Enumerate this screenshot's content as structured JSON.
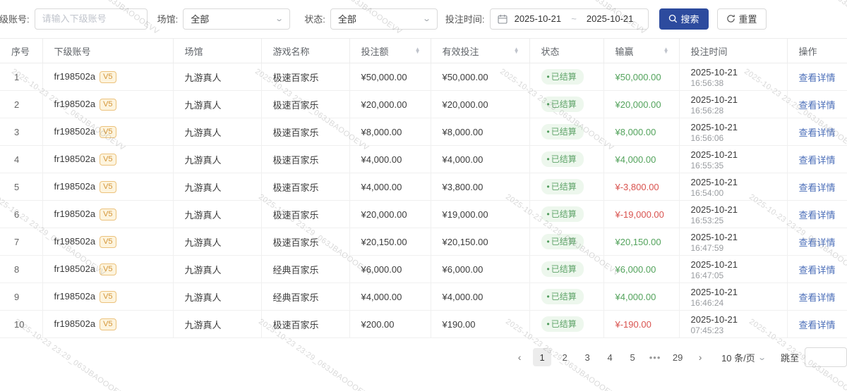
{
  "watermark": {
    "text": "2025-10-23 23:29_063JBAOOOEVV"
  },
  "filters": {
    "account_label": "下级账号:",
    "account_placeholder": "请输入下级账号",
    "venue_label": "场馆:",
    "venue_value": "全部",
    "status_label": "状态:",
    "status_value": "全部",
    "time_label": "投注时间:",
    "date_start": "2025-10-21",
    "date_separator": "~",
    "date_end": "2025-10-21",
    "search_label": "搜索",
    "reset_label": "重置"
  },
  "table": {
    "columns": [
      {
        "label": "序号",
        "sortable": false
      },
      {
        "label": "下级账号",
        "sortable": false
      },
      {
        "label": "场馆",
        "sortable": false
      },
      {
        "label": "游戏名称",
        "sortable": false
      },
      {
        "label": "投注额",
        "sortable": true
      },
      {
        "label": "有效投注",
        "sortable": true
      },
      {
        "label": "状态",
        "sortable": false
      },
      {
        "label": "输赢",
        "sortable": true
      },
      {
        "label": "投注时间",
        "sortable": false
      },
      {
        "label": "操作",
        "sortable": false
      }
    ],
    "action_label": "查看详情",
    "status_dot": "•",
    "rows": [
      {
        "index": "1",
        "account": "fr198502a",
        "badge": "V5",
        "venue": "九游真人",
        "game": "极速百家乐",
        "bet": "¥50,000.00",
        "valid": "¥50,000.00",
        "status": "已结算",
        "winloss": "¥50,000.00",
        "trend": "win",
        "date": "2025-10-21",
        "time": "16:56:38"
      },
      {
        "index": "2",
        "account": "fr198502a",
        "badge": "V5",
        "venue": "九游真人",
        "game": "极速百家乐",
        "bet": "¥20,000.00",
        "valid": "¥20,000.00",
        "status": "已结算",
        "winloss": "¥20,000.00",
        "trend": "win",
        "date": "2025-10-21",
        "time": "16:56:28"
      },
      {
        "index": "3",
        "account": "fr198502a",
        "badge": "V5",
        "venue": "九游真人",
        "game": "极速百家乐",
        "bet": "¥8,000.00",
        "valid": "¥8,000.00",
        "status": "已结算",
        "winloss": "¥8,000.00",
        "trend": "win",
        "date": "2025-10-21",
        "time": "16:56:06"
      },
      {
        "index": "4",
        "account": "fr198502a",
        "badge": "V5",
        "venue": "九游真人",
        "game": "极速百家乐",
        "bet": "¥4,000.00",
        "valid": "¥4,000.00",
        "status": "已结算",
        "winloss": "¥4,000.00",
        "trend": "win",
        "date": "2025-10-21",
        "time": "16:55:35"
      },
      {
        "index": "5",
        "account": "fr198502a",
        "badge": "V5",
        "venue": "九游真人",
        "game": "极速百家乐",
        "bet": "¥4,000.00",
        "valid": "¥3,800.00",
        "status": "已结算",
        "winloss": "¥-3,800.00",
        "trend": "loss",
        "date": "2025-10-21",
        "time": "16:54:00"
      },
      {
        "index": "6",
        "account": "fr198502a",
        "badge": "V5",
        "venue": "九游真人",
        "game": "极速百家乐",
        "bet": "¥20,000.00",
        "valid": "¥19,000.00",
        "status": "已结算",
        "winloss": "¥-19,000.00",
        "trend": "loss",
        "date": "2025-10-21",
        "time": "16:53:25"
      },
      {
        "index": "7",
        "account": "fr198502a",
        "badge": "V5",
        "venue": "九游真人",
        "game": "极速百家乐",
        "bet": "¥20,150.00",
        "valid": "¥20,150.00",
        "status": "已结算",
        "winloss": "¥20,150.00",
        "trend": "win",
        "date": "2025-10-21",
        "time": "16:47:59"
      },
      {
        "index": "8",
        "account": "fr198502a",
        "badge": "V5",
        "venue": "九游真人",
        "game": "经典百家乐",
        "bet": "¥6,000.00",
        "valid": "¥6,000.00",
        "status": "已结算",
        "winloss": "¥6,000.00",
        "trend": "win",
        "date": "2025-10-21",
        "time": "16:47:05"
      },
      {
        "index": "9",
        "account": "fr198502a",
        "badge": "V5",
        "venue": "九游真人",
        "game": "经典百家乐",
        "bet": "¥4,000.00",
        "valid": "¥4,000.00",
        "status": "已结算",
        "winloss": "¥4,000.00",
        "trend": "win",
        "date": "2025-10-21",
        "time": "16:46:24"
      },
      {
        "index": "10",
        "account": "fr198502a",
        "badge": "V5",
        "venue": "九游真人",
        "game": "极速百家乐",
        "bet": "¥200.00",
        "valid": "¥190.00",
        "status": "已结算",
        "winloss": "¥-190.00",
        "trend": "loss",
        "date": "2025-10-21",
        "time": "07:45:23"
      }
    ]
  },
  "pagination": {
    "prev": "‹",
    "next": "›",
    "pages": [
      "1",
      "2",
      "3",
      "4",
      "5",
      "•••",
      "29"
    ],
    "active_page": "1",
    "page_size": "10 条/页",
    "jump_label": "跳至"
  }
}
